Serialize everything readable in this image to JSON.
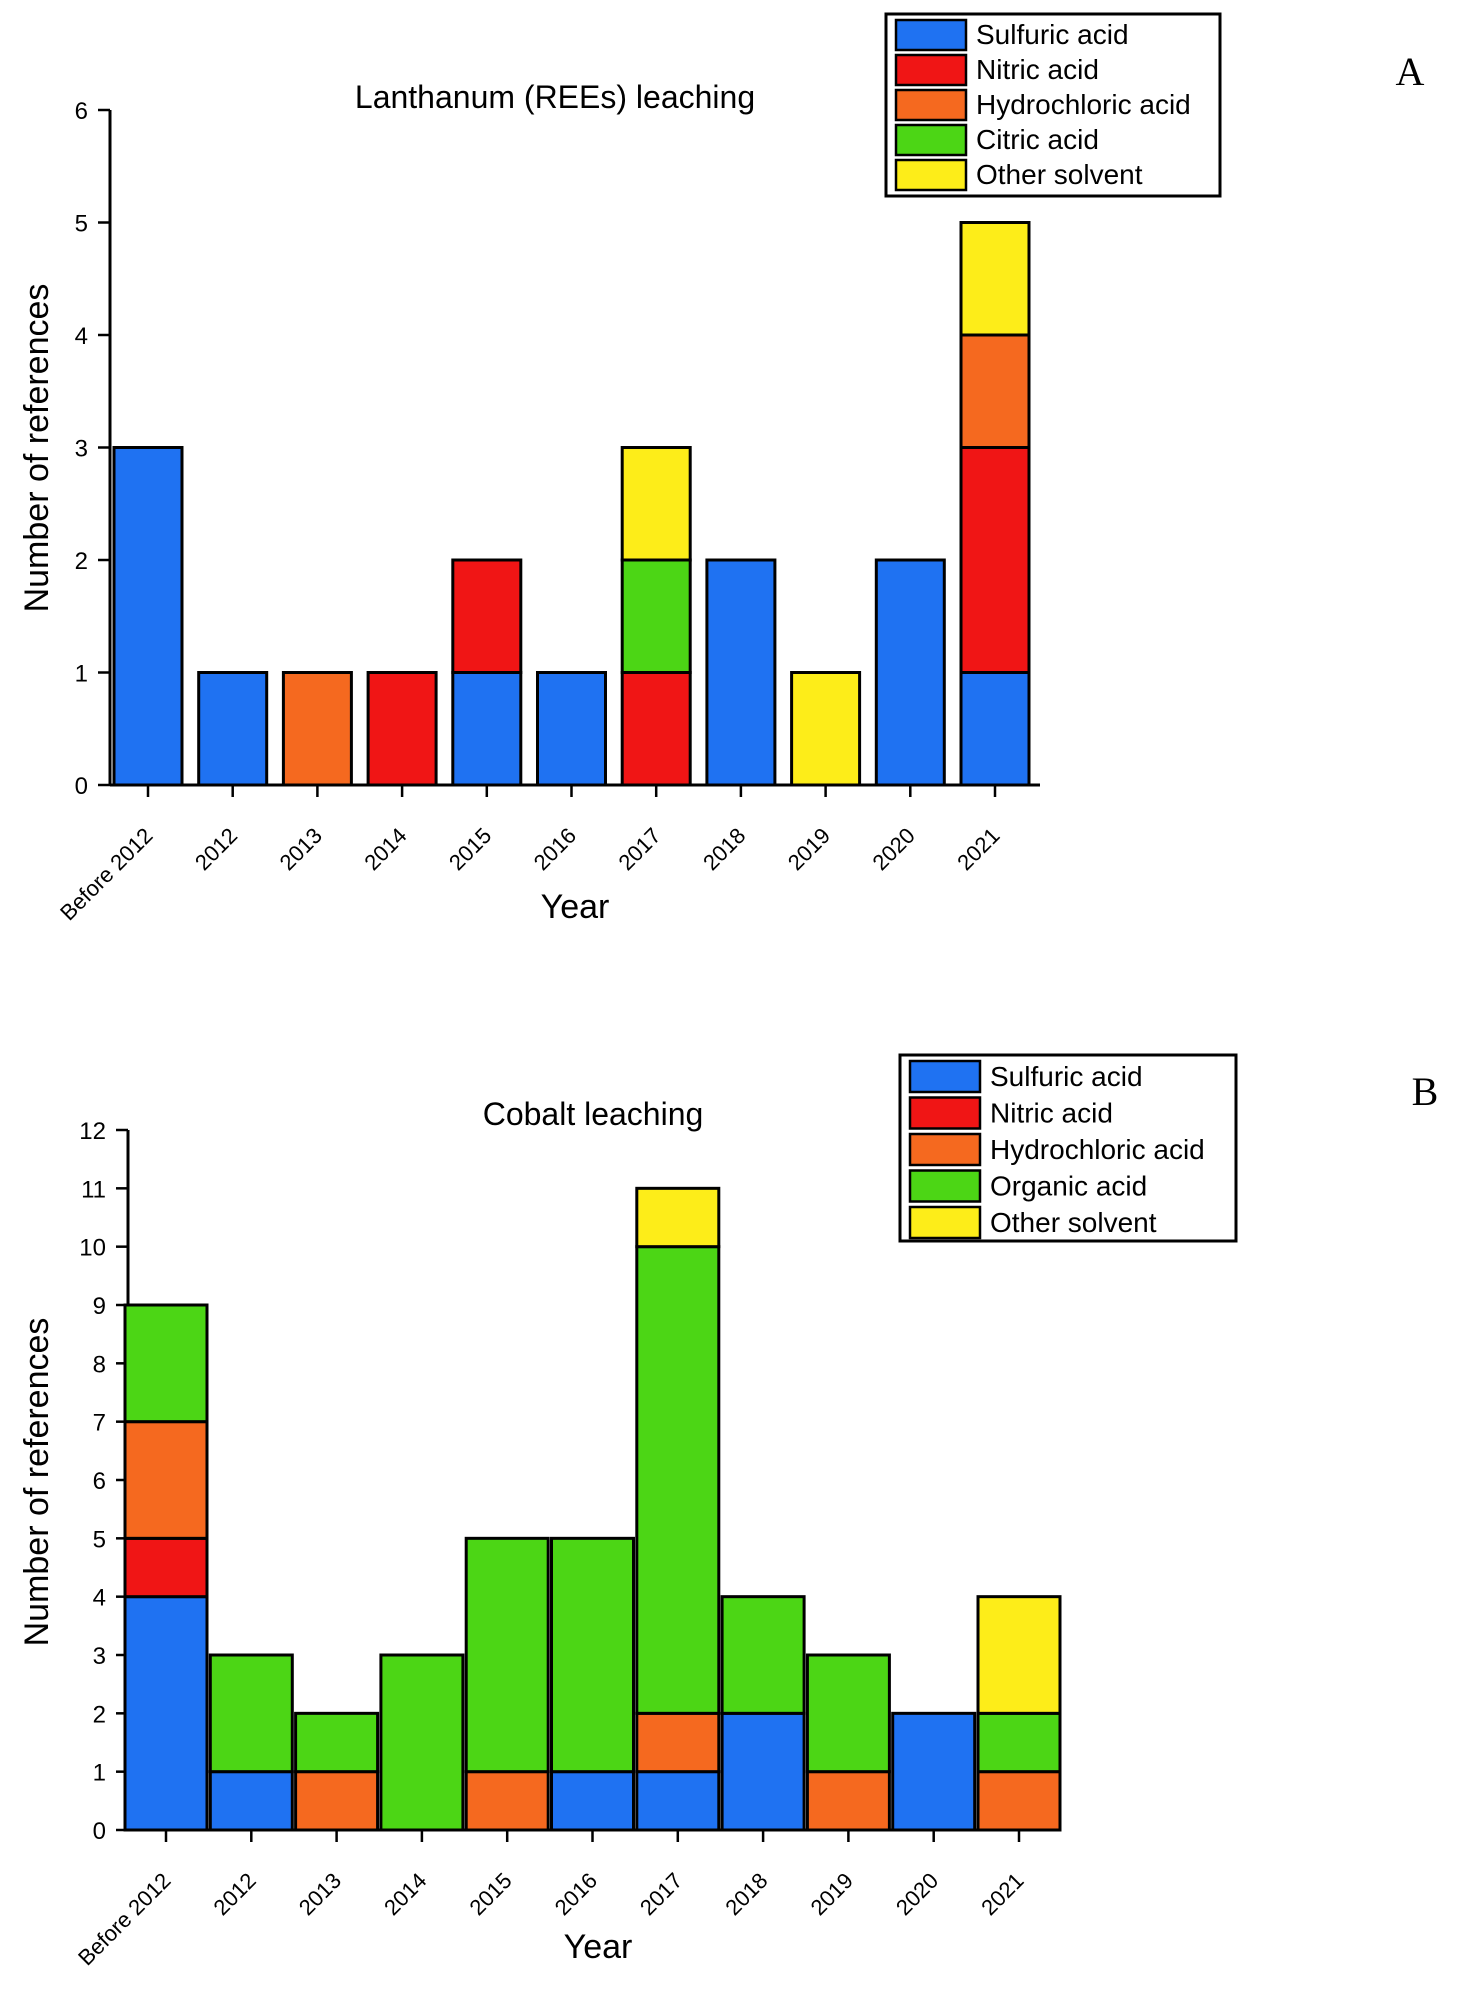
{
  "colors": {
    "sulfuric": "#1f72f2",
    "nitric": "#f01515",
    "hydrochloric": "#f5691f",
    "organic": "#4cd615",
    "other": "#fded19"
  },
  "chart_data": [
    {
      "type": "bar",
      "stacked": true,
      "panel": "A",
      "title": "Lanthanum (REEs) leaching",
      "xlabel": "Year",
      "ylabel": "Number of references",
      "ylim": [
        0,
        6
      ],
      "yticks": [
        0,
        1,
        2,
        3,
        4,
        5,
        6
      ],
      "categories": [
        "Before 2012",
        "2012",
        "2013",
        "2014",
        "2015",
        "2016",
        "2017",
        "2018",
        "2019",
        "2020",
        "2021"
      ],
      "legend_position": "top-right",
      "series": [
        {
          "name": "Sulfuric acid",
          "color_key": "sulfuric",
          "values": [
            3,
            1,
            0,
            0,
            1,
            1,
            0,
            2,
            0,
            2,
            1
          ]
        },
        {
          "name": "Nitric acid",
          "color_key": "nitric",
          "values": [
            0,
            0,
            0,
            1,
            1,
            0,
            1,
            0,
            0,
            0,
            2
          ]
        },
        {
          "name": "Hydrochloric acid",
          "color_key": "hydrochloric",
          "values": [
            0,
            0,
            1,
            0,
            0,
            0,
            0,
            0,
            0,
            0,
            1
          ]
        },
        {
          "name": "Citric acid",
          "color_key": "organic",
          "values": [
            0,
            0,
            0,
            0,
            0,
            0,
            1,
            0,
            0,
            0,
            0
          ]
        },
        {
          "name": "Other solvent",
          "color_key": "other",
          "values": [
            0,
            0,
            0,
            0,
            0,
            0,
            1,
            0,
            1,
            0,
            1
          ]
        }
      ]
    },
    {
      "type": "bar",
      "stacked": true,
      "panel": "B",
      "title": "Cobalt leaching",
      "xlabel": "Year",
      "ylabel": "Number of references",
      "ylim": [
        0,
        12
      ],
      "yticks": [
        0,
        1,
        2,
        3,
        4,
        5,
        6,
        7,
        8,
        9,
        10,
        11,
        12
      ],
      "categories": [
        "Before 2012",
        "2012",
        "2013",
        "2014",
        "2015",
        "2016",
        "2017",
        "2018",
        "2019",
        "2020",
        "2021"
      ],
      "legend_position": "top-right",
      "series": [
        {
          "name": "Sulfuric acid",
          "color_key": "sulfuric",
          "values": [
            4,
            1,
            0,
            0,
            0,
            1,
            1,
            2,
            0,
            2,
            0
          ]
        },
        {
          "name": "Nitric acid",
          "color_key": "nitric",
          "values": [
            1,
            0,
            0,
            0,
            0,
            0,
            0,
            0,
            0,
            0,
            0
          ]
        },
        {
          "name": "Hydrochloric acid",
          "color_key": "hydrochloric",
          "values": [
            2,
            0,
            1,
            0,
            1,
            0,
            1,
            0,
            1,
            0,
            1
          ]
        },
        {
          "name": "Organic acid",
          "color_key": "organic",
          "values": [
            2,
            2,
            1,
            3,
            4,
            4,
            8,
            2,
            2,
            0,
            1
          ]
        },
        {
          "name": "Other solvent",
          "color_key": "other",
          "values": [
            0,
            0,
            0,
            0,
            0,
            0,
            1,
            0,
            0,
            0,
            2
          ]
        }
      ]
    }
  ]
}
